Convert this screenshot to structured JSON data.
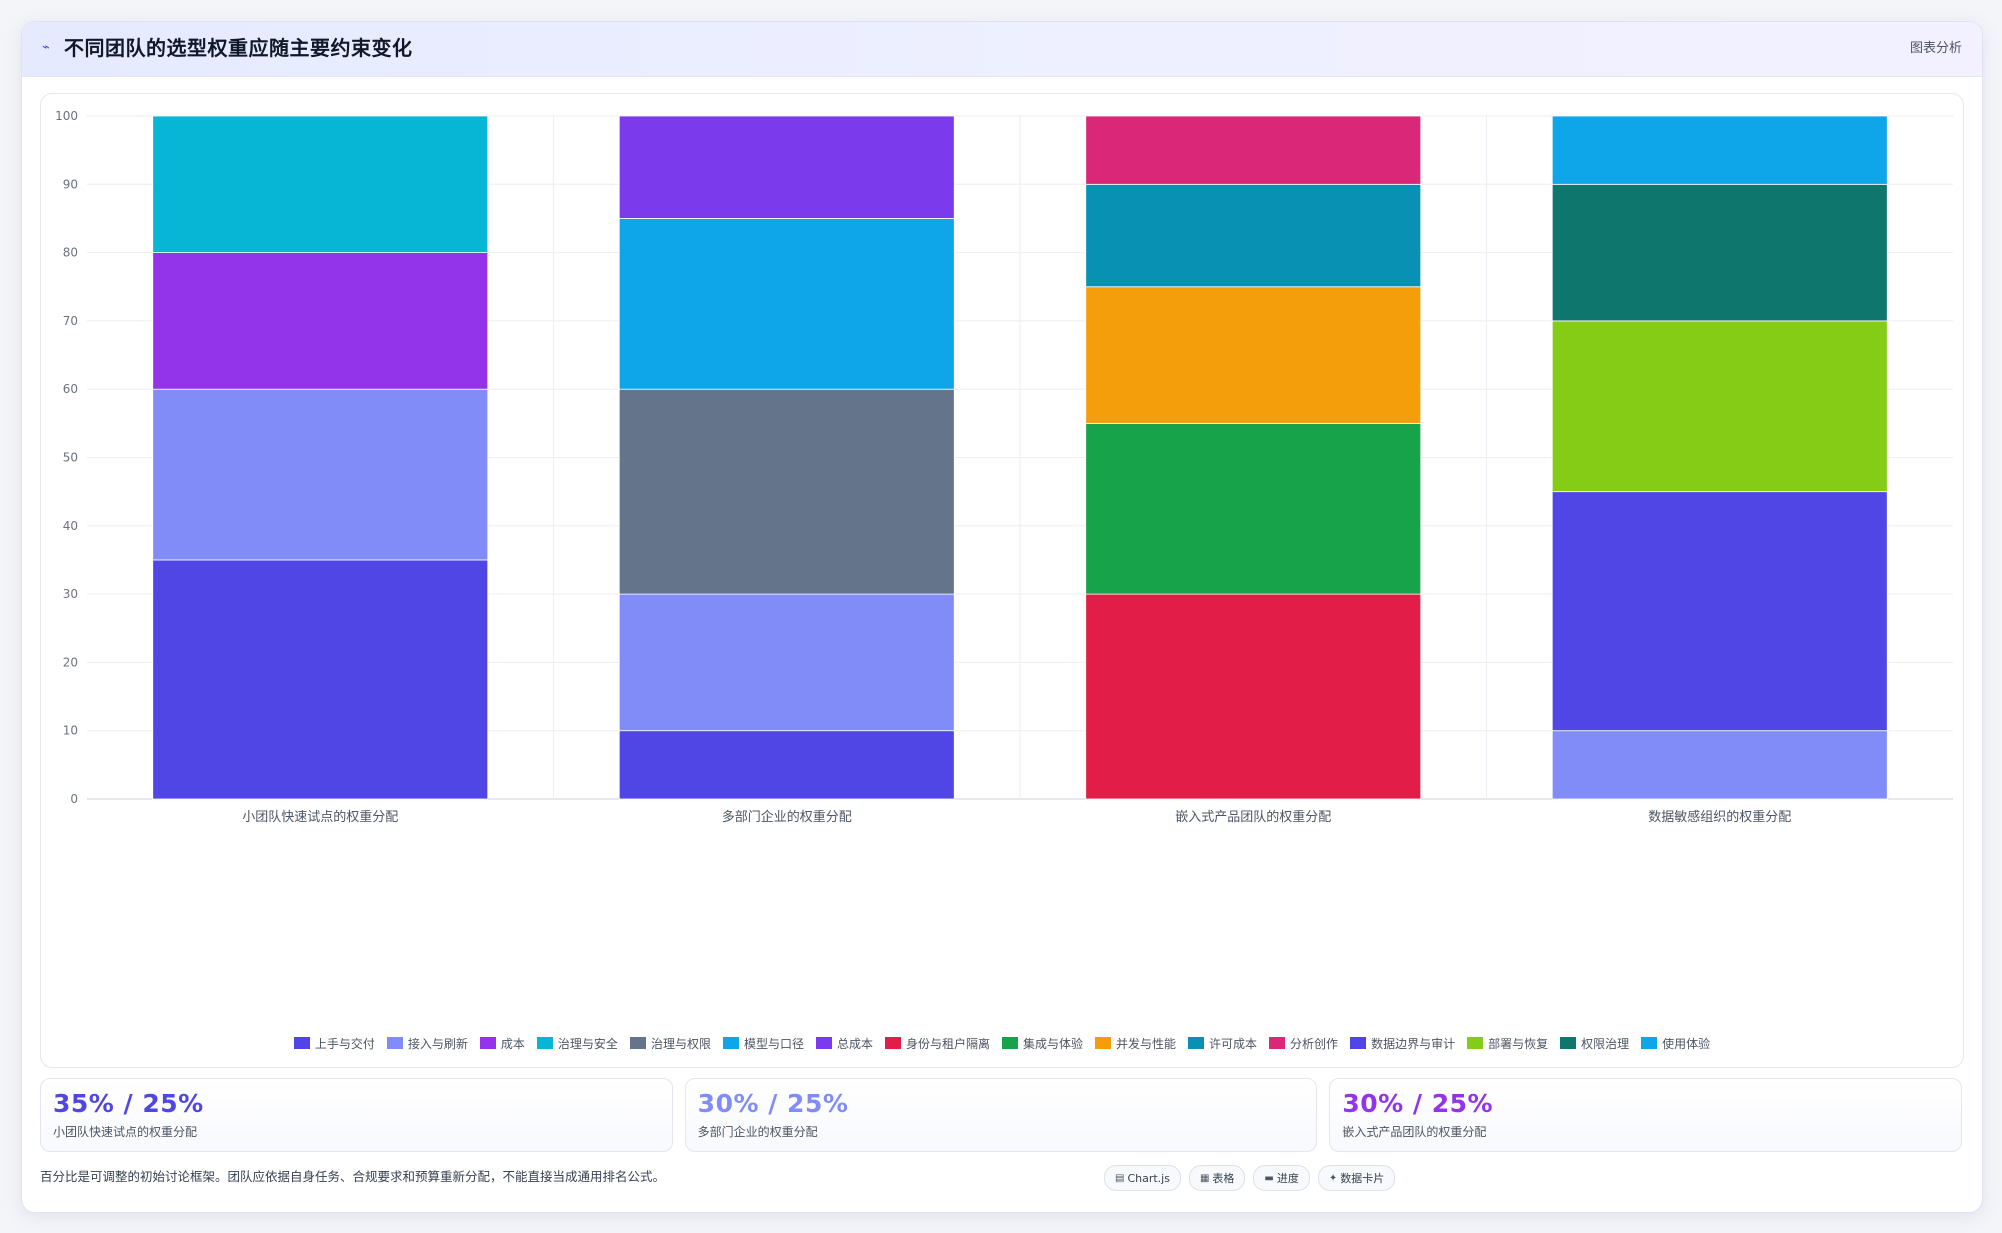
{
  "header": {
    "title": "不同团队的选型权重应随主要约束变化",
    "action_label": "图表分析"
  },
  "chart_data": {
    "type": "bar",
    "stacked": true,
    "ylim": [
      0,
      100
    ],
    "yticks": [
      0,
      10,
      20,
      30,
      40,
      50,
      60,
      70,
      80,
      90,
      100
    ],
    "grid": true,
    "legend_position": "bottom",
    "categories": [
      "小团队快速试点的权重分配",
      "多部门企业的权重分配",
      "嵌入式产品团队的权重分配",
      "数据敏感组织的权重分配"
    ],
    "series": [
      {
        "name": "上手与交付",
        "color": "#4f46e5",
        "values": [
          35,
          0,
          0,
          0
        ]
      },
      {
        "name": "接入与刷新",
        "color": "#818cf8",
        "values": [
          25,
          0,
          0,
          0
        ]
      },
      {
        "name": "成本",
        "color": "#9333ea",
        "values": [
          20,
          0,
          0,
          0
        ]
      },
      {
        "name": "治理与安全",
        "color": "#06b6d4",
        "values": [
          20,
          0,
          0,
          0
        ]
      },
      {
        "name": "治理与权限",
        "color": "#64748b",
        "values": [
          0,
          30,
          0,
          0
        ]
      },
      {
        "name": "模型与口径",
        "color": "#0ea5e9",
        "values": [
          0,
          25,
          0,
          0
        ]
      },
      {
        "name": "总成本",
        "color": "#7c3aed",
        "values": [
          0,
          15,
          0,
          0
        ]
      },
      {
        "name": "身份与租户隔离",
        "color": "#e11d48",
        "values": [
          0,
          0,
          30,
          0
        ]
      },
      {
        "name": "集成与体验",
        "color": "#16a34a",
        "values": [
          0,
          0,
          25,
          0
        ]
      },
      {
        "name": "并发与性能",
        "color": "#f59e0b",
        "values": [
          0,
          0,
          20,
          0
        ]
      },
      {
        "name": "许可成本",
        "color": "#0891b2",
        "values": [
          0,
          0,
          15,
          0
        ]
      },
      {
        "name": "分析创作",
        "color": "#db2777",
        "values": [
          0,
          0,
          10,
          0
        ]
      },
      {
        "name": "数据边界与审计",
        "color": "#4f46e5",
        "values": [
          0,
          0,
          0,
          35
        ]
      },
      {
        "name": "部署与恢复",
        "color": "#84cc16",
        "values": [
          0,
          0,
          0,
          25
        ]
      },
      {
        "name": "权限治理",
        "color": "#0f766e",
        "values": [
          0,
          0,
          0,
          20
        ]
      },
      {
        "name": "使用体验",
        "color": "#0ea5e9",
        "values": [
          0,
          0,
          0,
          10
        ]
      }
    ],
    "stack_order": [
      [
        0,
        1,
        2,
        3
      ],
      [
        0,
        1,
        4,
        5,
        6
      ],
      [
        7,
        8,
        9,
        10,
        11
      ],
      [
        1,
        12,
        13,
        14,
        15
      ]
    ],
    "extra_segments": [
      {
        "category": 1,
        "series": 0,
        "value": 10,
        "note_series_color": "#4f46e5"
      },
      {
        "category": 1,
        "series": 1,
        "value": 20
      },
      {
        "category": 3,
        "series": 1,
        "value": 10
      }
    ]
  },
  "stats": [
    {
      "value": "35% / 25%",
      "label": "小团队快速试点的权重分配",
      "color": "#4f46e5"
    },
    {
      "value": "30% / 25%",
      "label": "多部门企业的权重分配",
      "color": "#818cf8"
    },
    {
      "value": "30% / 25%",
      "label": "嵌入式产品团队的权重分配",
      "color": "#9333ea"
    }
  ],
  "footnote": "百分比是可调整的初始讨论框架。团队应依据自身任务、合规要求和预算重新分配，不能直接当成通用排名公式。",
  "tools": [
    {
      "icon": "▤",
      "label": "Chart.js"
    },
    {
      "icon": "▦",
      "label": "表格"
    },
    {
      "icon": "▬",
      "label": "进度"
    },
    {
      "icon": "✦",
      "label": "数据卡片"
    }
  ]
}
